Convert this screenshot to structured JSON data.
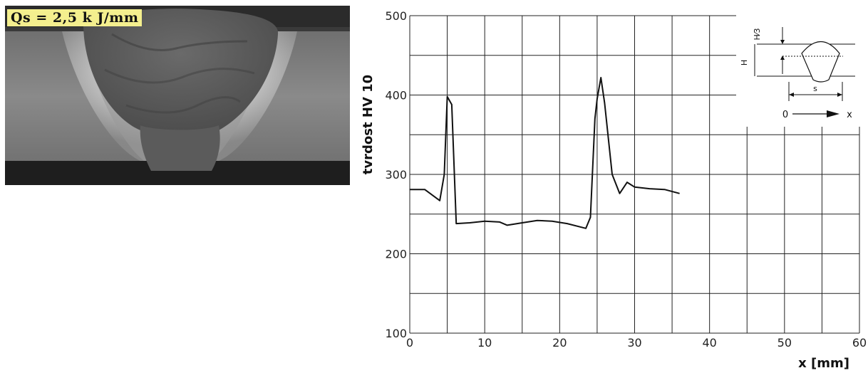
{
  "photo": {
    "label": "Qs = 2,5 k J/mm"
  },
  "chart_data": {
    "type": "line",
    "xlabel": "x [mm]",
    "ylabel": "tvrdost HV 10",
    "xlim": [
      0,
      60
    ],
    "ylim": [
      100,
      500
    ],
    "xticks": [
      "0",
      "10",
      "20",
      "30",
      "40",
      "50",
      "60"
    ],
    "yticks": [
      "100",
      "200",
      "300",
      "400",
      "500"
    ],
    "grid": true,
    "series": [
      {
        "x": [
          0,
          2,
          4,
          4.6,
          5,
          5.6,
          6.2,
          8,
          10,
          12,
          13,
          15,
          17,
          19,
          21,
          23.5,
          24.1,
          24.7,
          25,
          25.5,
          26,
          27,
          28,
          29,
          30,
          32,
          34,
          36
        ],
        "y": [
          281,
          281,
          267,
          300,
          398,
          388,
          238,
          239,
          241,
          240,
          236,
          239,
          242,
          241,
          238,
          232,
          246,
          370,
          395,
          422,
          390,
          300,
          276,
          290,
          284,
          282,
          281,
          276
        ]
      }
    ]
  },
  "inset": {
    "label_h3": "H⁄3",
    "label_h": "H",
    "label_s": "s",
    "label_0": "0",
    "label_x": "x"
  }
}
